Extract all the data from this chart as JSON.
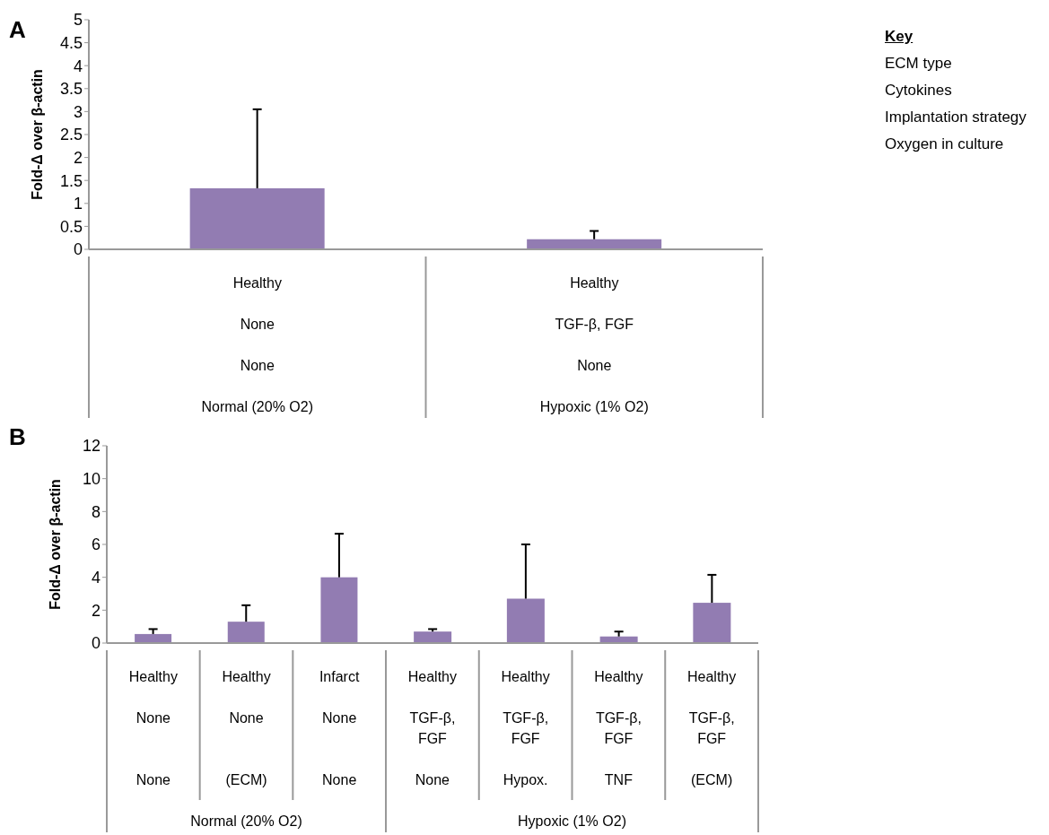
{
  "chart_data": [
    {
      "type": "bar",
      "title": "A",
      "ylabel": "Fold-Δ over β-actin",
      "categories": [
        "Healthy\nNone\nNone\nNormal (20% O2)",
        "Healthy\nTGF-β, FGF\nNone\nHypoxic (1% O2)"
      ],
      "values": [
        1.33,
        0.22
      ],
      "color": "#927cb2",
      "errors": [
        [
          1.33,
          3.05
        ],
        [
          0.22,
          0.4
        ]
      ],
      "ylim": [
        0,
        5
      ],
      "yticks": [
        0,
        0.5,
        1,
        1.5,
        2,
        2.5,
        3,
        3.5,
        4,
        4.5,
        5
      ],
      "legend_title": "Key",
      "annotations": [
        "ECM type",
        "Cytokines",
        "Implantation strategy",
        "Oxygen in culture"
      ]
    },
    {
      "type": "bar",
      "title": "B",
      "ylabel": "Fold-Δ over β-actin",
      "xlabel": "Normal (20% O2)",
      "categories": [
        "Healthy\nNone\nNone",
        "Healthy\nNone\n(ECM)",
        "Infarct\nNone\nNone"
      ],
      "values": [
        0.55,
        1.3,
        4.0
      ],
      "color": "#927cb2",
      "errors": [
        [
          0.55,
          0.85
        ],
        [
          1.3,
          2.3
        ],
        [
          4.0,
          6.65
        ]
      ],
      "ylim": [
        0,
        12
      ],
      "yticks": [
        0,
        2,
        4,
        6,
        8,
        10,
        12
      ]
    },
    {
      "type": "bar",
      "xlabel": "Hypoxic (1% O2)",
      "categories": [
        "Healthy\nTGF-β, FGF\nNone",
        "Healthy\nTGF-β, FGF\nHypox.",
        "Healthy\nTGF-β, FGF\nTNF",
        "Healthy\nTGF-β, FGF\n(ECM)"
      ],
      "values": [
        0.7,
        2.7,
        0.4,
        2.45
      ],
      "color": "#927cb2",
      "errors": [
        [
          0.7,
          0.85
        ],
        [
          2.7,
          6.0
        ],
        [
          0.4,
          0.7
        ],
        [
          2.45,
          4.15
        ]
      ],
      "ylim": [
        0,
        12
      ],
      "yticks": [
        0,
        2,
        4,
        6,
        8,
        10,
        12
      ],
      "tick_labels": "x"
    }
  ]
}
